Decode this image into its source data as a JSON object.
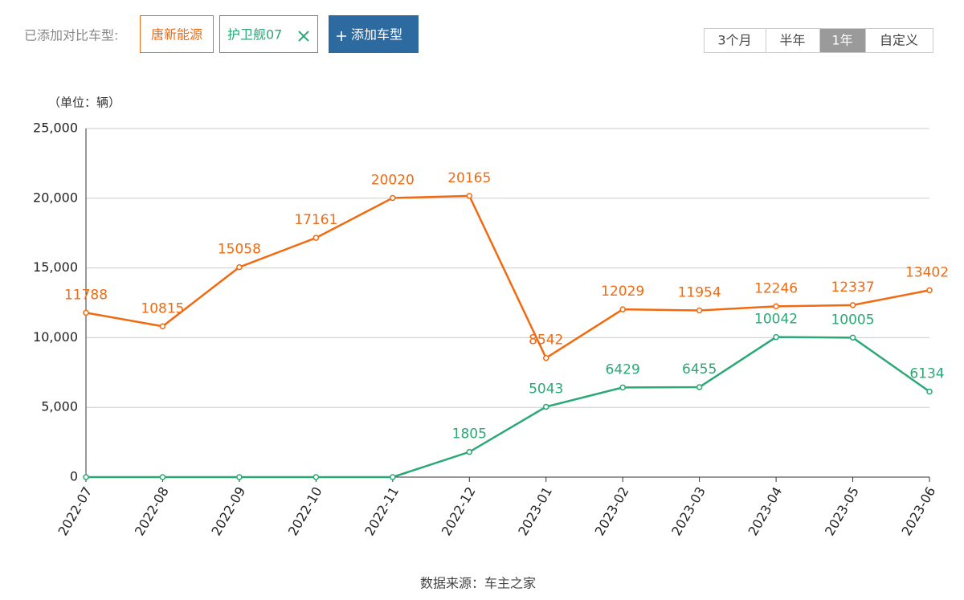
{
  "ui": {
    "compare_label": "已添加对比车型:",
    "add_button": "添加车型",
    "ranges": [
      "3个月",
      "半年",
      "1年",
      "自定义"
    ],
    "active_range": 2,
    "source": "数据来源：车主之家"
  },
  "chart_data": {
    "type": "line",
    "ylabel": "（单位：辆）",
    "categories": [
      "2022-07",
      "2022-08",
      "2022-09",
      "2022-10",
      "2022-11",
      "2022-12",
      "2023-01",
      "2023-02",
      "2023-03",
      "2023-04",
      "2023-05",
      "2023-06"
    ],
    "series": [
      {
        "name": "唐新能源",
        "color": "#f26a10",
        "values": [
          11788,
          10815,
          15058,
          17161,
          20020,
          20165,
          8542,
          12029,
          11954,
          12246,
          12337,
          13402
        ]
      },
      {
        "name": "护卫舰07",
        "color": "#2aa876",
        "values": [
          0,
          0,
          0,
          0,
          0,
          1805,
          5043,
          6429,
          6455,
          10042,
          10005,
          6134
        ]
      }
    ],
    "ylim": [
      0,
      25000
    ],
    "yticks": [
      0,
      {
        "value": 5000,
        "label": "5,000"
      },
      {
        "value": 10000,
        "label": "10,000"
      },
      {
        "value": 15000,
        "label": "15,000"
      },
      {
        "value": 20000,
        "label": "20,000"
      },
      {
        "value": 25000,
        "label": "25,000"
      }
    ],
    "grid": true
  }
}
